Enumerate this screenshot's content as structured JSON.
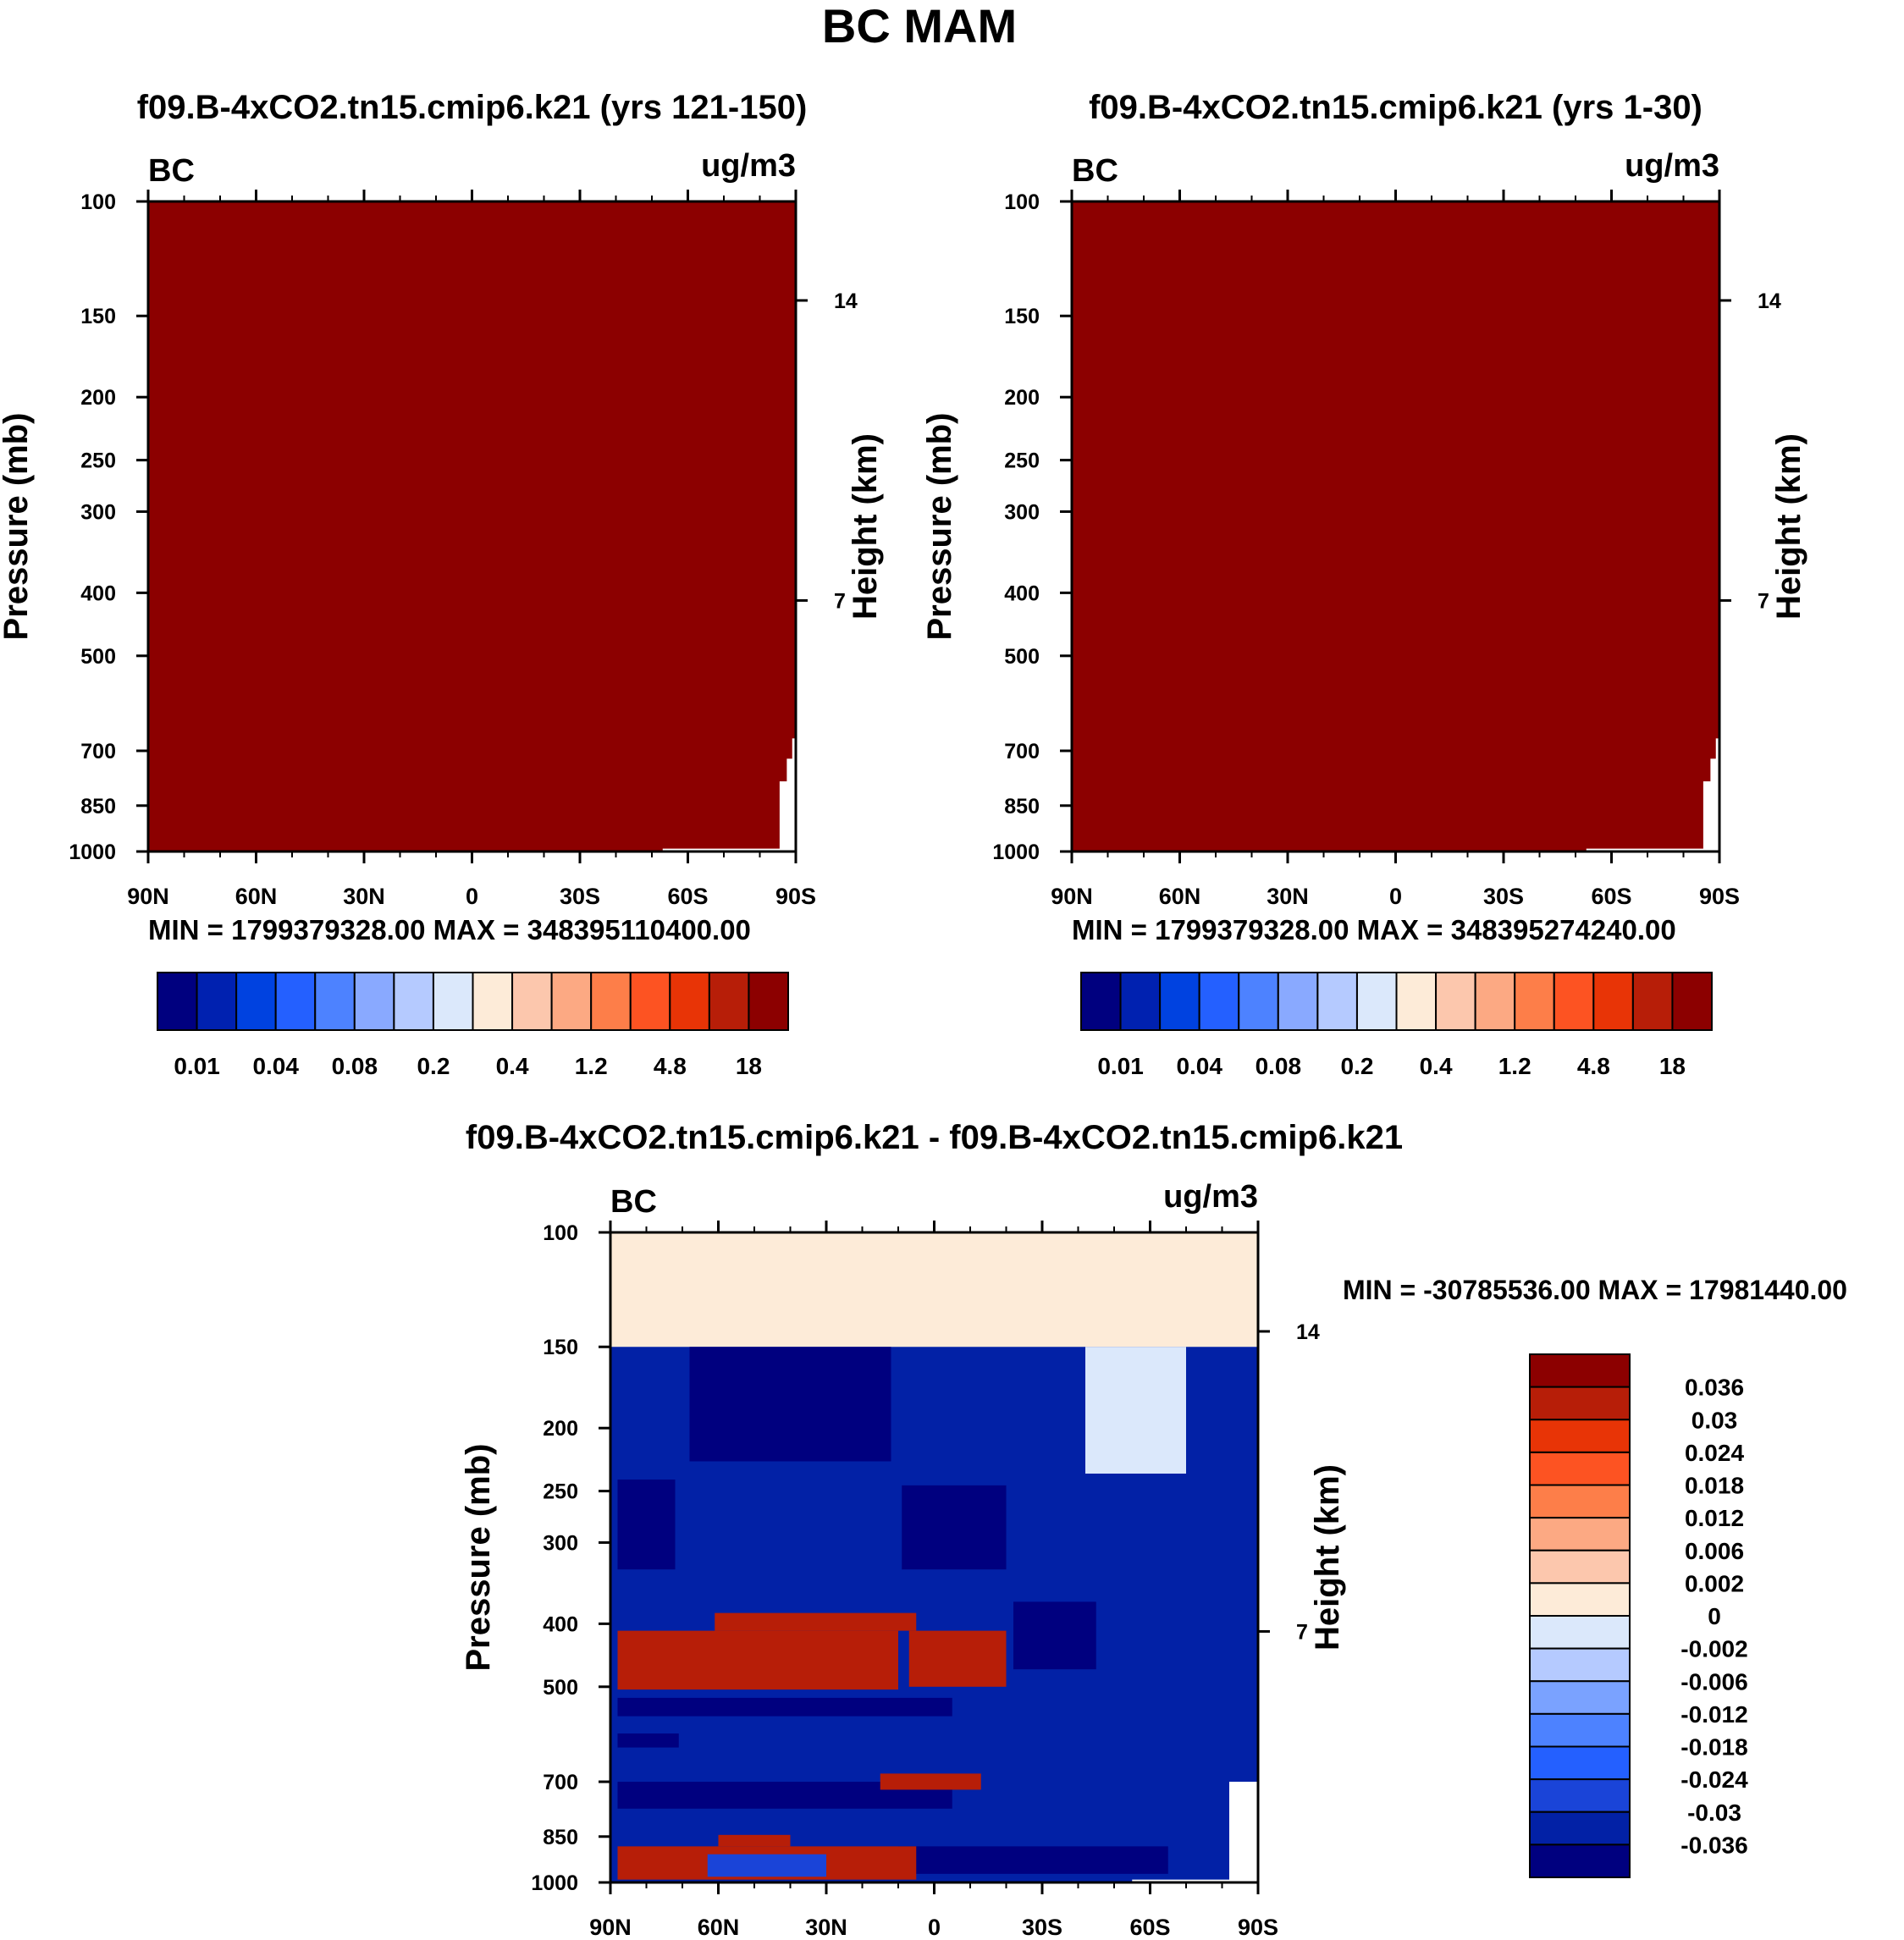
{
  "main_title": "BC MAM",
  "colors": {
    "seq": [
      "#00007f",
      "#0021b0",
      "#0042e0",
      "#2460ff",
      "#4d82ff",
      "#89a9ff",
      "#b5caff",
      "#dbe8fb",
      "#fdebd8",
      "#fcc7ad",
      "#fca983",
      "#fd7e49",
      "#fd5322",
      "#e83406",
      "#b71e08",
      "#8c0000"
    ],
    "diff": [
      "#00007f",
      "#0221a6",
      "#1a44d8",
      "#2460ff",
      "#4d82ff",
      "#7aa2ff",
      "#b5caff",
      "#dbe8fb",
      "#fdebd8",
      "#fcc7ad",
      "#fca983",
      "#fd7e49",
      "#fd5322",
      "#e83406",
      "#b71e08",
      "#8c0000"
    ],
    "field_dark": "#8c0000"
  },
  "chart_data": [
    {
      "id": "panel-1",
      "type": "heatmap",
      "title": "f09.B-4xCO2.tn15.cmip6.k21 (yrs 121-150)",
      "variable": "BC",
      "units": "ug/m3",
      "ylabel": "Pressure (mb)",
      "ylabel_right": "Height (km)",
      "x_ticks": [
        "90N",
        "60N",
        "30N",
        "0",
        "30S",
        "60S",
        "90S"
      ],
      "y_ticks": [
        "100",
        "150",
        "200",
        "250",
        "300",
        "400",
        "500",
        "700",
        "850",
        "1000"
      ],
      "y_right_ticks": [
        "14",
        "7"
      ],
      "stats": "MIN = 1799379328.00   MAX = 348395110400.00",
      "fill": "all values above top contour level (>18 ug/m3); missing data near surface at southern high latitudes"
    },
    {
      "id": "panel-2",
      "type": "heatmap",
      "title": "f09.B-4xCO2.tn15.cmip6.k21 (yrs 1-30)",
      "variable": "BC",
      "units": "ug/m3",
      "ylabel": "Pressure (mb)",
      "ylabel_right": "Height (km)",
      "x_ticks": [
        "90N",
        "60N",
        "30N",
        "0",
        "30S",
        "60S",
        "90S"
      ],
      "y_ticks": [
        "100",
        "150",
        "200",
        "250",
        "300",
        "400",
        "500",
        "700",
        "850",
        "1000"
      ],
      "y_right_ticks": [
        "14",
        "7"
      ],
      "stats": "MIN = 1799379328.00   MAX = 348395274240.00",
      "fill": "all values above top contour level (>18 ug/m3); missing data near surface at southern high latitudes"
    },
    {
      "id": "panel-diff",
      "type": "heatmap",
      "title": "f09.B-4xCO2.tn15.cmip6.k21 - f09.B-4xCO2.tn15.cmip6.k21",
      "variable": "BC",
      "units": "ug/m3",
      "ylabel": "Pressure (mb)",
      "ylabel_right": "Height (km)",
      "x_ticks": [
        "90N",
        "60N",
        "30N",
        "0",
        "30S",
        "60S",
        "90S"
      ],
      "y_ticks": [
        "100",
        "150",
        "200",
        "250",
        "300",
        "400",
        "500",
        "700",
        "850",
        "1000"
      ],
      "y_right_ticks": [
        "14",
        "7"
      ],
      "stats": "MIN = -30785536.00   MAX = 17981440.00",
      "fill": "0 to 0.002 above 150 mb; mostly below -0.036 and -0.036 to -0.03 below 150 mb with bands of 0.036+ near 400-500, 700 and 900 mb"
    }
  ],
  "colorbars": {
    "top_labels": [
      "0.01",
      "0.04",
      "0.08",
      "0.2",
      "0.4",
      "1.2",
      "4.8",
      "18"
    ],
    "diff_labels": [
      "0.036",
      "0.03",
      "0.024",
      "0.018",
      "0.012",
      "0.006",
      "0.002",
      "0",
      "-0.002",
      "-0.006",
      "-0.012",
      "-0.018",
      "-0.024",
      "-0.03",
      "-0.036"
    ]
  }
}
